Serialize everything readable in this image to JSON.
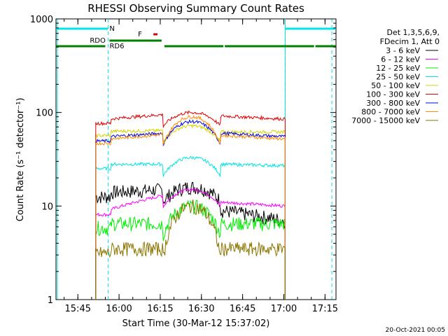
{
  "chart_data": {
    "type": "line",
    "title": "RHESSI Observing Summary Count Rates",
    "xlabel": "Start Time (30-Mar-12 15:37:02)",
    "ylabel": "Count Rate (s⁻¹ detector⁻¹)",
    "y_scale": "log",
    "ylim": [
      1,
      1000
    ],
    "xlim": [
      "15:37:02",
      "17:19:00"
    ],
    "x_ticks": [
      "15:45",
      "16:00",
      "16:15",
      "16:30",
      "16:45",
      "17:00",
      "17:15"
    ],
    "y_ticks": [
      "1",
      "10",
      "100",
      "1000"
    ],
    "legend_header": [
      "Det 1,3,5,6,9,",
      "FDecim 1, Att 0"
    ],
    "legend_position": "right",
    "timestamp": "20-Oct-2021 00:05",
    "flags": [
      {
        "label": "N",
        "color": "#00e5e5",
        "segments": [
          [
            "15:37:02",
            "15:56:00"
          ],
          [
            "17:00:30",
            "17:19:00"
          ]
        ]
      },
      {
        "label": "F",
        "color": "#e00000",
        "segments": [
          [
            "16:12:30",
            "16:14:00"
          ]
        ]
      },
      {
        "label": "RDO",
        "color": "#008000",
        "segments": [
          [
            "15:56:30",
            "16:15:30"
          ]
        ]
      },
      {
        "label": "RD6",
        "color": "#008000",
        "segments": [
          [
            "15:37:02",
            "15:55:00"
          ],
          [
            "16:16:30",
            "16:38:00"
          ],
          [
            "16:38:30",
            "17:11:00"
          ],
          [
            "17:11:30",
            "17:19:00"
          ]
        ]
      }
    ],
    "boundaries": {
      "night_end": "15:56:00",
      "saa_start": "16:37:00",
      "night_start": "17:00:30",
      "day_end": "17:17:30",
      "data_start": "15:51:30"
    },
    "series": [
      {
        "name": "3 - 6 keV",
        "color": "#000000",
        "values": {
          "day1_start": 14,
          "day1_end": 15,
          "mid_peak": 16,
          "day2_start": 9,
          "day2_end": 7
        }
      },
      {
        "name": "6 - 12 keV",
        "color": "#ff00ff",
        "values": {
          "day1_start": 9,
          "day1_end": 13,
          "mid_peak": 15,
          "day2_start": 11,
          "day2_end": 10
        }
      },
      {
        "name": "12 - 25 keV",
        "color": "#00ee00",
        "values": {
          "day1_start": 6.5,
          "day1_end": 6.5,
          "mid_peak": 10,
          "day2_start": 6.5,
          "day2_end": 6.5
        }
      },
      {
        "name": "25 - 50 keV",
        "color": "#00e5e5",
        "values": {
          "day1_start": 28,
          "day1_end": 28,
          "mid_peak": 33,
          "day2_start": 28,
          "day2_end": 27
        }
      },
      {
        "name": "50 - 100 keV",
        "color": "#d4d400",
        "values": {
          "day1_start": 63,
          "day1_end": 64,
          "mid_peak": 72,
          "day2_start": 62,
          "day2_end": 62
        }
      },
      {
        "name": "100 - 300 keV",
        "color": "#e00000",
        "values": {
          "day1_start": 85,
          "day1_end": 95,
          "mid_peak": 100,
          "day2_start": 92,
          "day2_end": 85
        }
      },
      {
        "name": "300 - 800 keV",
        "color": "#0000e0",
        "values": {
          "day1_start": 55,
          "day1_end": 60,
          "mid_peak": 80,
          "day2_start": 60,
          "day2_end": 55
        }
      },
      {
        "name": "800 - 7000 keV",
        "color": "#ff8c00",
        "values": {
          "day1_start": 52,
          "day1_end": 58,
          "mid_peak": 90,
          "day2_start": 57,
          "day2_end": 52
        }
      },
      {
        "name": "7000 - 15000 keV",
        "color": "#8b7500",
        "values": {
          "day1_start": 3.5,
          "day1_end": 3.5,
          "mid_peak": 10,
          "day2_start": 3.5,
          "day2_end": 3.5
        }
      }
    ]
  }
}
